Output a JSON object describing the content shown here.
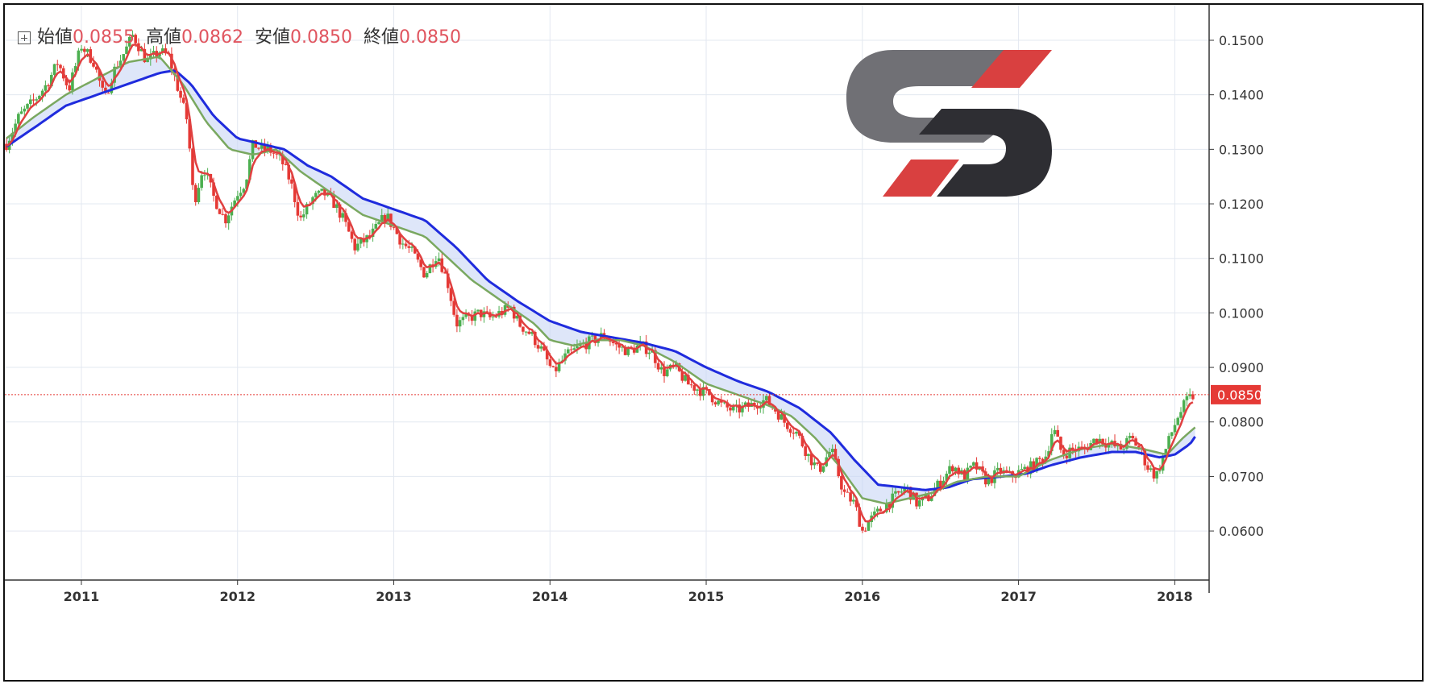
{
  "ohlc": {
    "open_label": "始値",
    "open_value": "0.0855",
    "high_label": "高値",
    "high_value": "0.0862",
    "low_label": "安値",
    "low_value": "0.0850",
    "close_label": "終値",
    "close_value": "0.0850"
  },
  "current_price_label": "0.0850",
  "colors": {
    "up": "#4caf50",
    "down": "#e53935",
    "ema_fast": "#e04040",
    "ema_mid": "#7aa860",
    "ema_slow": "#1f2bdd",
    "cloud": "#c8d6f5",
    "price_line": "#e53935",
    "logo_grey": "#707075",
    "logo_dark": "#2e2e33",
    "logo_red": "#d94040"
  },
  "chart_data": {
    "type": "candlestick",
    "title": "",
    "xlabel": "",
    "ylabel": "",
    "x_ticks": [
      "2011",
      "2012",
      "2013",
      "2014",
      "2015",
      "2016",
      "2017",
      "2018"
    ],
    "y_ticks": [
      "0.1500",
      "0.1400",
      "0.1300",
      "0.1200",
      "0.1100",
      "0.1000",
      "0.0900",
      "0.0800",
      "0.0700",
      "0.0600"
    ],
    "ylim": [
      0.051,
      0.1565
    ],
    "xlim": [
      2010.51,
      2018.22
    ],
    "last_price": 0.085,
    "grid": true,
    "price_path": [
      [
        2010.52,
        0.131
      ],
      [
        2010.6,
        0.136
      ],
      [
        2010.7,
        0.139
      ],
      [
        2010.78,
        0.142
      ],
      [
        2010.85,
        0.146
      ],
      [
        2010.92,
        0.141
      ],
      [
        2011.0,
        0.149
      ],
      [
        2011.08,
        0.146
      ],
      [
        2011.15,
        0.139
      ],
      [
        2011.2,
        0.144
      ],
      [
        2011.28,
        0.148
      ],
      [
        2011.33,
        0.151
      ],
      [
        2011.42,
        0.146
      ],
      [
        2011.5,
        0.148
      ],
      [
        2011.56,
        0.147
      ],
      [
        2011.62,
        0.141
      ],
      [
        2011.68,
        0.135
      ],
      [
        2011.72,
        0.12
      ],
      [
        2011.78,
        0.127
      ],
      [
        2011.85,
        0.121
      ],
      [
        2011.92,
        0.117
      ],
      [
        2012.0,
        0.122
      ],
      [
        2012.05,
        0.124
      ],
      [
        2012.1,
        0.131
      ],
      [
        2012.15,
        0.13
      ],
      [
        2012.2,
        0.13
      ],
      [
        2012.28,
        0.128
      ],
      [
        2012.34,
        0.124
      ],
      [
        2012.4,
        0.117
      ],
      [
        2012.48,
        0.121
      ],
      [
        2012.55,
        0.122
      ],
      [
        2012.62,
        0.12
      ],
      [
        2012.68,
        0.117
      ],
      [
        2012.75,
        0.112
      ],
      [
        2012.85,
        0.114
      ],
      [
        2012.95,
        0.118
      ],
      [
        2013.05,
        0.113
      ],
      [
        2013.12,
        0.111
      ],
      [
        2013.2,
        0.107
      ],
      [
        2013.28,
        0.111
      ],
      [
        2013.35,
        0.105
      ],
      [
        2013.4,
        0.098
      ],
      [
        2013.48,
        0.099
      ],
      [
        2013.55,
        0.1
      ],
      [
        2013.62,
        0.099
      ],
      [
        2013.68,
        0.1
      ],
      [
        2013.75,
        0.101
      ],
      [
        2013.8,
        0.098
      ],
      [
        2013.88,
        0.096
      ],
      [
        2013.95,
        0.093
      ],
      [
        2014.02,
        0.089
      ],
      [
        2014.1,
        0.092
      ],
      [
        2014.2,
        0.094
      ],
      [
        2014.28,
        0.095
      ],
      [
        2014.35,
        0.096
      ],
      [
        2014.42,
        0.094
      ],
      [
        2014.5,
        0.093
      ],
      [
        2014.58,
        0.094
      ],
      [
        2014.65,
        0.093
      ],
      [
        2014.72,
        0.089
      ],
      [
        2014.8,
        0.09
      ],
      [
        2014.88,
        0.087
      ],
      [
        2014.95,
        0.086
      ],
      [
        2015.02,
        0.085
      ],
      [
        2015.1,
        0.083
      ],
      [
        2015.18,
        0.082
      ],
      [
        2015.28,
        0.083
      ],
      [
        2015.38,
        0.084
      ],
      [
        2015.45,
        0.082
      ],
      [
        2015.5,
        0.08
      ],
      [
        2015.58,
        0.078
      ],
      [
        2015.65,
        0.074
      ],
      [
        2015.72,
        0.071
      ],
      [
        2015.8,
        0.075
      ],
      [
        2015.88,
        0.067
      ],
      [
        2015.95,
        0.065
      ],
      [
        2016.0,
        0.06
      ],
      [
        2016.05,
        0.062
      ],
      [
        2016.12,
        0.064
      ],
      [
        2016.2,
        0.066
      ],
      [
        2016.28,
        0.068
      ],
      [
        2016.35,
        0.065
      ],
      [
        2016.42,
        0.066
      ],
      [
        2016.5,
        0.069
      ],
      [
        2016.58,
        0.072
      ],
      [
        2016.65,
        0.07
      ],
      [
        2016.72,
        0.072
      ],
      [
        2016.8,
        0.069
      ],
      [
        2016.88,
        0.071
      ],
      [
        2016.95,
        0.07
      ],
      [
        2017.02,
        0.071
      ],
      [
        2017.1,
        0.072
      ],
      [
        2017.18,
        0.074
      ],
      [
        2017.22,
        0.079
      ],
      [
        2017.28,
        0.074
      ],
      [
        2017.35,
        0.075
      ],
      [
        2017.42,
        0.075
      ],
      [
        2017.5,
        0.077
      ],
      [
        2017.58,
        0.076
      ],
      [
        2017.65,
        0.075
      ],
      [
        2017.72,
        0.077
      ],
      [
        2017.78,
        0.075
      ],
      [
        2017.82,
        0.072
      ],
      [
        2017.88,
        0.07
      ],
      [
        2017.92,
        0.073
      ],
      [
        2017.98,
        0.078
      ],
      [
        2018.02,
        0.081
      ],
      [
        2018.08,
        0.084
      ],
      [
        2018.13,
        0.085
      ]
    ],
    "series": [
      {
        "type": "ema",
        "values": [
          [
            2010.52,
            0.132
          ],
          [
            2010.7,
            0.136
          ],
          [
            2010.9,
            0.14
          ],
          [
            2011.1,
            0.143
          ],
          [
            2011.3,
            0.146
          ],
          [
            2011.5,
            0.147
          ],
          [
            2011.65,
            0.142
          ],
          [
            2011.8,
            0.135
          ],
          [
            2011.95,
            0.13
          ],
          [
            2012.1,
            0.129
          ],
          [
            2012.25,
            0.13
          ],
          [
            2012.4,
            0.126
          ],
          [
            2012.6,
            0.122
          ],
          [
            2012.8,
            0.118
          ],
          [
            2013.0,
            0.116
          ],
          [
            2013.2,
            0.114
          ],
          [
            2013.35,
            0.11
          ],
          [
            2013.5,
            0.106
          ],
          [
            2013.7,
            0.102
          ],
          [
            2013.9,
            0.098
          ],
          [
            2014.0,
            0.095
          ],
          [
            2014.15,
            0.094
          ],
          [
            2014.3,
            0.095
          ],
          [
            2014.45,
            0.095
          ],
          [
            2014.6,
            0.094
          ],
          [
            2014.8,
            0.091
          ],
          [
            2015.0,
            0.087
          ],
          [
            2015.2,
            0.085
          ],
          [
            2015.4,
            0.083
          ],
          [
            2015.55,
            0.081
          ],
          [
            2015.7,
            0.077
          ],
          [
            2015.85,
            0.072
          ],
          [
            2016.0,
            0.066
          ],
          [
            2016.15,
            0.065
          ],
          [
            2016.3,
            0.066
          ],
          [
            2016.45,
            0.067
          ],
          [
            2016.6,
            0.069
          ],
          [
            2016.8,
            0.07
          ],
          [
            2017.0,
            0.07
          ],
          [
            2017.2,
            0.073
          ],
          [
            2017.4,
            0.075
          ],
          [
            2017.6,
            0.076
          ],
          [
            2017.8,
            0.075
          ],
          [
            2017.95,
            0.074
          ],
          [
            2018.05,
            0.077
          ],
          [
            2018.13,
            0.079
          ]
        ]
      },
      {
        "type": "ema",
        "values": [
          [
            2010.52,
            0.1305
          ],
          [
            2010.7,
            0.134
          ],
          [
            2010.9,
            0.138
          ],
          [
            2011.1,
            0.14
          ],
          [
            2011.3,
            0.142
          ],
          [
            2011.5,
            0.144
          ],
          [
            2011.6,
            0.1445
          ],
          [
            2011.7,
            0.142
          ],
          [
            2011.85,
            0.136
          ],
          [
            2012.0,
            0.132
          ],
          [
            2012.15,
            0.131
          ],
          [
            2012.3,
            0.13
          ],
          [
            2012.45,
            0.127
          ],
          [
            2012.6,
            0.125
          ],
          [
            2012.8,
            0.121
          ],
          [
            2013.0,
            0.119
          ],
          [
            2013.2,
            0.117
          ],
          [
            2013.4,
            0.112
          ],
          [
            2013.6,
            0.106
          ],
          [
            2013.8,
            0.102
          ],
          [
            2014.0,
            0.0985
          ],
          [
            2014.2,
            0.0965
          ],
          [
            2014.4,
            0.0955
          ],
          [
            2014.6,
            0.0945
          ],
          [
            2014.8,
            0.093
          ],
          [
            2015.0,
            0.09
          ],
          [
            2015.2,
            0.0875
          ],
          [
            2015.4,
            0.0855
          ],
          [
            2015.6,
            0.0825
          ],
          [
            2015.8,
            0.078
          ],
          [
            2015.95,
            0.073
          ],
          [
            2016.1,
            0.0685
          ],
          [
            2016.25,
            0.068
          ],
          [
            2016.4,
            0.0675
          ],
          [
            2016.55,
            0.068
          ],
          [
            2016.7,
            0.0695
          ],
          [
            2016.9,
            0.07
          ],
          [
            2017.05,
            0.0705
          ],
          [
            2017.2,
            0.072
          ],
          [
            2017.4,
            0.0735
          ],
          [
            2017.6,
            0.0745
          ],
          [
            2017.75,
            0.0745
          ],
          [
            2017.9,
            0.0735
          ],
          [
            2018.0,
            0.074
          ],
          [
            2018.1,
            0.076
          ],
          [
            2018.13,
            0.0773
          ]
        ]
      }
    ]
  }
}
